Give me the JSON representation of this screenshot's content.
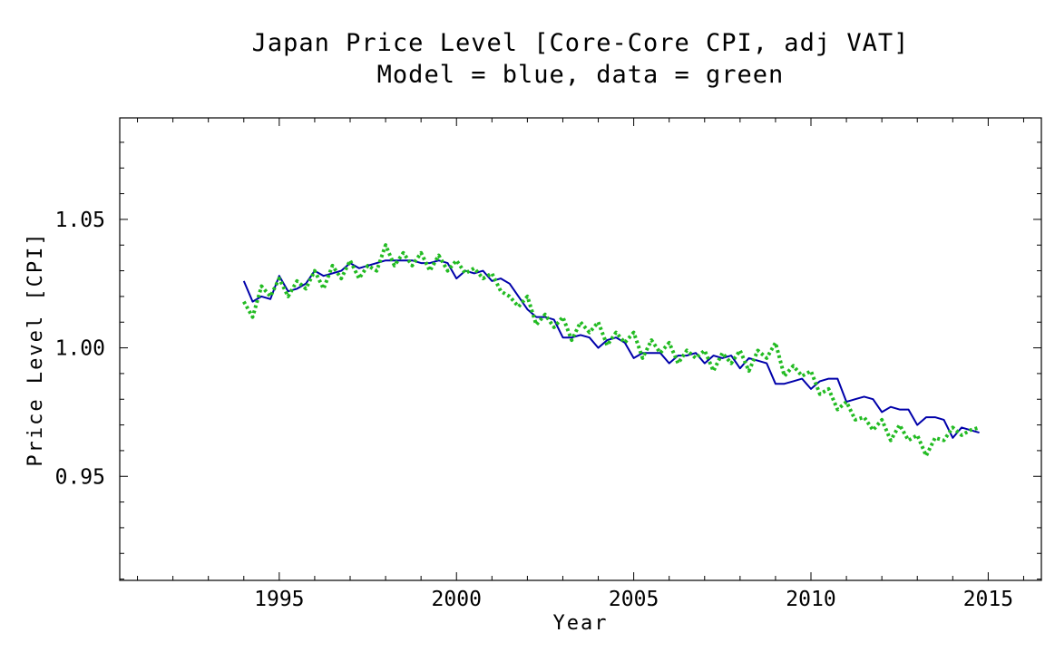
{
  "chart_data": {
    "type": "line",
    "title": "Japan Price Level [Core-Core CPI, adj VAT]",
    "subtitle": "Model = blue, data = green",
    "xlabel": "Year",
    "ylabel": "Price Level [CPI]",
    "xlim": [
      1990.5,
      2016.5
    ],
    "ylim": [
      0.9095,
      1.0895
    ],
    "x_ticks": [
      1995,
      2000,
      2005,
      2010,
      2015
    ],
    "x_tick_labels": [
      "1995",
      "2000",
      "2005",
      "2010",
      "2015"
    ],
    "y_ticks": [
      0.95,
      1.0,
      1.05
    ],
    "y_tick_labels": [
      "0.95",
      "1.00",
      "1.05"
    ],
    "grid": false,
    "legend": "none",
    "series": [
      {
        "color": "#0000aa",
        "style": "solid",
        "x": [
          1994.0,
          1994.25,
          1994.5,
          1994.75,
          1995.0,
          1995.25,
          1995.5,
          1995.75,
          1996.0,
          1996.25,
          1996.5,
          1996.75,
          1997.0,
          1997.25,
          1997.5,
          1997.75,
          1998.0,
          1998.25,
          1998.5,
          1998.75,
          1999.0,
          1999.25,
          1999.5,
          1999.75,
          2000.0,
          2000.25,
          2000.5,
          2000.75,
          2001.0,
          2001.25,
          2001.5,
          2001.75,
          2002.0,
          2002.25,
          2002.5,
          2002.75,
          2003.0,
          2003.25,
          2003.5,
          2003.75,
          2004.0,
          2004.25,
          2004.5,
          2004.75,
          2005.0,
          2005.25,
          2005.5,
          2005.75,
          2006.0,
          2006.25,
          2006.5,
          2006.75,
          2007.0,
          2007.25,
          2007.5,
          2007.75,
          2008.0,
          2008.25,
          2008.5,
          2008.75,
          2009.0,
          2009.25,
          2009.5,
          2009.75,
          2010.0,
          2010.25,
          2010.5,
          2010.75,
          2011.0,
          2011.25,
          2011.5,
          2011.75,
          2012.0,
          2012.25,
          2012.5,
          2012.75,
          2013.0,
          2013.25,
          2013.5,
          2013.75,
          2014.0,
          2014.25,
          2014.5,
          2014.75
        ],
        "y": [
          1.026,
          1.018,
          1.02,
          1.019,
          1.028,
          1.022,
          1.023,
          1.025,
          1.03,
          1.028,
          1.029,
          1.03,
          1.033,
          1.031,
          1.032,
          1.033,
          1.034,
          1.034,
          1.034,
          1.034,
          1.033,
          1.033,
          1.034,
          1.033,
          1.027,
          1.03,
          1.029,
          1.03,
          1.026,
          1.027,
          1.025,
          1.02,
          1.015,
          1.012,
          1.012,
          1.011,
          1.004,
          1.004,
          1.005,
          1.004,
          1.0,
          1.003,
          1.004,
          1.002,
          0.996,
          0.998,
          0.998,
          0.998,
          0.994,
          0.997,
          0.997,
          0.998,
          0.994,
          0.997,
          0.996,
          0.997,
          0.992,
          0.996,
          0.995,
          0.994,
          0.986,
          0.986,
          0.987,
          0.988,
          0.984,
          0.987,
          0.988,
          0.988,
          0.979,
          0.98,
          0.981,
          0.98,
          0.975,
          0.977,
          0.976,
          0.976,
          0.97,
          0.973,
          0.973,
          0.972,
          0.965,
          0.969,
          0.968,
          0.967
        ]
      },
      {
        "color": "#22bb22",
        "style": "dotted",
        "x": [
          1994.0,
          1994.25,
          1994.5,
          1994.75,
          1995.0,
          1995.25,
          1995.5,
          1995.75,
          1996.0,
          1996.25,
          1996.5,
          1996.75,
          1997.0,
          1997.25,
          1997.5,
          1997.75,
          1998.0,
          1998.25,
          1998.5,
          1998.75,
          1999.0,
          1999.25,
          1999.5,
          1999.75,
          2000.0,
          2000.25,
          2000.5,
          2000.75,
          2001.0,
          2001.25,
          2001.5,
          2001.75,
          2002.0,
          2002.25,
          2002.5,
          2002.75,
          2003.0,
          2003.25,
          2003.5,
          2003.75,
          2004.0,
          2004.25,
          2004.5,
          2004.75,
          2005.0,
          2005.25,
          2005.5,
          2005.75,
          2006.0,
          2006.25,
          2006.5,
          2006.75,
          2007.0,
          2007.25,
          2007.5,
          2007.75,
          2008.0,
          2008.25,
          2008.5,
          2008.75,
          2009.0,
          2009.25,
          2009.5,
          2009.75,
          2010.0,
          2010.25,
          2010.5,
          2010.75,
          2011.0,
          2011.25,
          2011.5,
          2011.75,
          2012.0,
          2012.25,
          2012.5,
          2012.75,
          2013.0,
          2013.25,
          2013.5,
          2013.75,
          2014.0,
          2014.25,
          2014.5,
          2014.75
        ],
        "y": [
          1.018,
          1.012,
          1.024,
          1.02,
          1.027,
          1.02,
          1.026,
          1.023,
          1.03,
          1.023,
          1.032,
          1.027,
          1.034,
          1.027,
          1.032,
          1.03,
          1.04,
          1.032,
          1.037,
          1.032,
          1.037,
          1.03,
          1.036,
          1.03,
          1.034,
          1.029,
          1.031,
          1.027,
          1.029,
          1.022,
          1.02,
          1.016,
          1.02,
          1.009,
          1.013,
          1.008,
          1.012,
          1.003,
          1.01,
          1.006,
          1.01,
          1.001,
          1.006,
          1.002,
          1.006,
          0.996,
          1.003,
          0.998,
          1.002,
          0.994,
          0.999,
          0.996,
          0.999,
          0.991,
          0.998,
          0.994,
          0.999,
          0.991,
          0.999,
          0.996,
          1.002,
          0.989,
          0.993,
          0.989,
          0.991,
          0.982,
          0.984,
          0.976,
          0.979,
          0.972,
          0.973,
          0.968,
          0.972,
          0.964,
          0.97,
          0.964,
          0.966,
          0.958,
          0.965,
          0.964,
          0.969,
          0.966,
          0.968,
          0.969
        ]
      }
    ]
  }
}
